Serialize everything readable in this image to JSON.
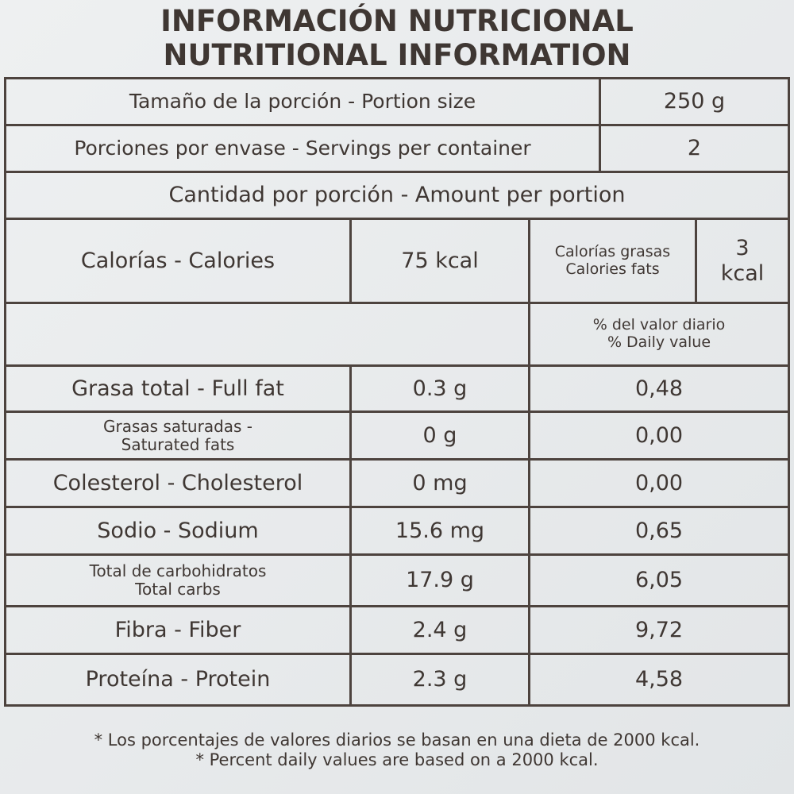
{
  "header": {
    "lines": [
      "INFORMACIÓN NUTRICIONAL",
      "NUTRITIONAL INFORMATION"
    ]
  },
  "serving": {
    "portion_size": {
      "label": "Tamaño de la porción - Portion size",
      "value": "250 g"
    },
    "servings": {
      "label": "Porciones por envase - Servings per container",
      "value": "2"
    }
  },
  "amount_header": "Cantidad por porción - Amount per portion",
  "calories": {
    "label": "Calorías - Calories",
    "value": "75 kcal",
    "fat_label": [
      "Calorías grasas",
      "Calories fats"
    ],
    "fat_value": [
      "3",
      "kcal"
    ]
  },
  "daily_value_header": [
    "% del valor diario",
    "% Daily value"
  ],
  "nutrients": [
    {
      "name": [
        "Grasa total - Full fat"
      ],
      "amount": "0.3 g",
      "daily": "0,48"
    },
    {
      "name": [
        "Grasas saturadas -",
        "Saturated fats"
      ],
      "amount": "0 g",
      "daily": "0,00"
    },
    {
      "name": [
        "Colesterol - Cholesterol"
      ],
      "amount": "0 mg",
      "daily": "0,00"
    },
    {
      "name": [
        "Sodio - Sodium"
      ],
      "amount": "15.6 mg",
      "daily": "0,65"
    },
    {
      "name": [
        "Total de carbohidratos",
        "Total carbs"
      ],
      "amount": "17.9 g",
      "daily": "6,05"
    },
    {
      "name": [
        "Fibra - Fiber"
      ],
      "amount": "2.4 g",
      "daily": "9,72"
    },
    {
      "name": [
        "Proteína - Protein"
      ],
      "amount": "2.3 g",
      "daily": "4,58"
    }
  ],
  "footnote": [
    "* Los porcentajes de valores diarios se basan en una dieta de 2000 kcal.",
    "* Percent daily values are based on a 2000 kcal."
  ]
}
